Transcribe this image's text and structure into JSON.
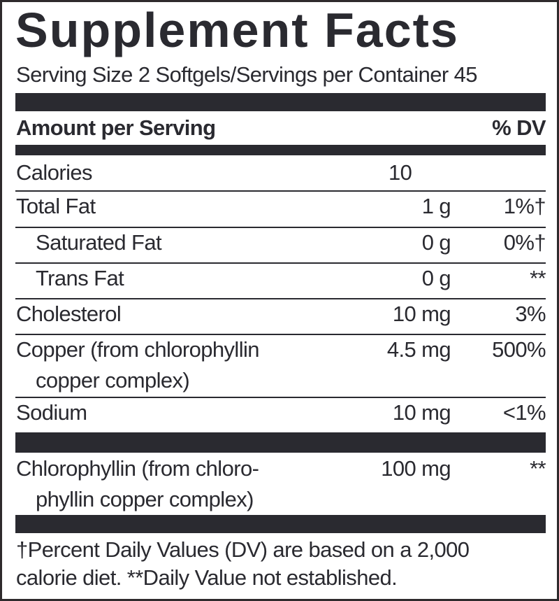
{
  "title": "Supplement Facts",
  "serving": "Serving Size 2 Softgels/Servings per Container 45",
  "header": {
    "amount": "Amount per Serving",
    "dv": "% DV"
  },
  "rows": [
    {
      "name": [
        "Calories"
      ],
      "amount": "10"
    },
    {
      "name": [
        "Total Fat"
      ],
      "amount": "1 g",
      "dv": "1%†"
    },
    {
      "name": [
        "Saturated Fat"
      ],
      "amount": "0 g",
      "dv": "0%†"
    },
    {
      "name": [
        "Trans Fat"
      ],
      "amount": "0 g",
      "dv": "**"
    },
    {
      "name": [
        "Cholesterol"
      ],
      "amount": "10 mg",
      "dv": "3%"
    },
    {
      "name": [
        "Copper (from chlorophyllin",
        "copper complex)"
      ],
      "amount": "4.5 mg",
      "dv": "500%"
    },
    {
      "name": [
        "Sodium"
      ],
      "amount": "10 mg",
      "dv": "<1%"
    }
  ],
  "other": {
    "name": [
      "Chlorophyllin (from chloro-",
      "phyllin copper complex)"
    ],
    "amount": "100 mg",
    "dv": "**"
  },
  "footnote": [
    "†Percent Daily Values (DV) are based on a 2,000",
    "calorie diet. **Daily Value not established."
  ]
}
